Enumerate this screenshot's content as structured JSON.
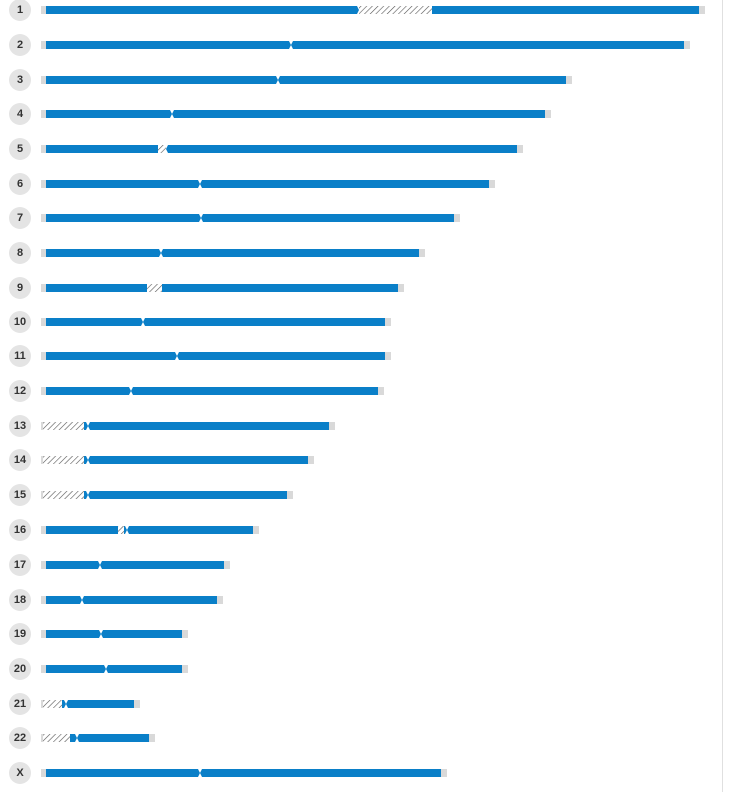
{
  "chromosomes": [
    {
      "label": "1",
      "centromere": 0.47,
      "color": "#0a7fc8",
      "pattern": "hatched"
    },
    {
      "label": "2",
      "centromere": 0.38,
      "color": "#0a7fc8"
    },
    {
      "label": "3",
      "centromere": 0.45,
      "color": "#0a7fc8"
    },
    {
      "label": "4",
      "centromere": 0.25,
      "color": "#0a7fc8"
    },
    {
      "label": "5",
      "centromere": 0.27,
      "color": "#0a7fc8",
      "pattern": "hatched"
    },
    {
      "label": "6",
      "centromere": 0.35,
      "color": "#0a7fc8"
    },
    {
      "label": "7",
      "centromere": 0.38,
      "color": "#0a7fc8"
    },
    {
      "label": "8",
      "centromere": 0.31,
      "color": "#0a7fc8"
    },
    {
      "label": "9",
      "centromere": 0.33,
      "color": "#0a7fc8",
      "pattern": "hatched"
    },
    {
      "label": "10",
      "centromere": 0.29,
      "color": "#0a7fc8"
    },
    {
      "label": "11",
      "centromere": 0.39,
      "color": "#0a7fc8"
    },
    {
      "label": "12",
      "centromere": 0.26,
      "color": "#0a7fc8"
    },
    {
      "label": "13",
      "centromere": 0.15,
      "color": "#0a7fc8",
      "pattern": "hatched"
    },
    {
      "label": "14",
      "centromere": 0.17,
      "color": "#0a7fc8",
      "pattern": "hatched"
    },
    {
      "label": "15",
      "centromere": 0.19,
      "color": "#0a7fc8",
      "pattern": "hatched"
    },
    {
      "label": "16",
      "centromere": 0.39,
      "color": "#0a7fc8",
      "pattern": "hatched"
    },
    {
      "label": "17",
      "centromere": 0.3,
      "color": "#0a7fc8"
    },
    {
      "label": "18",
      "centromere": 0.23,
      "color": "#0a7fc8"
    },
    {
      "label": "19",
      "centromere": 0.4,
      "color": "#0a7fc8"
    },
    {
      "label": "20",
      "centromere": 0.43,
      "color": "#0a7fc8"
    },
    {
      "label": "21",
      "centromere": 0.24,
      "color": "#0a7fc8",
      "pattern": "hatched"
    },
    {
      "label": "22",
      "centromere": 0.31,
      "color": "#0a7fc8",
      "pattern": "hatched"
    },
    {
      "label": "X",
      "centromere": 0.39,
      "color": "#0a7fc8"
    }
  ],
  "colors": {
    "band": "#0a7fc8",
    "tip": "#d9d9d9",
    "hatch": "#555555",
    "label_bg": "#e4e4e4"
  }
}
